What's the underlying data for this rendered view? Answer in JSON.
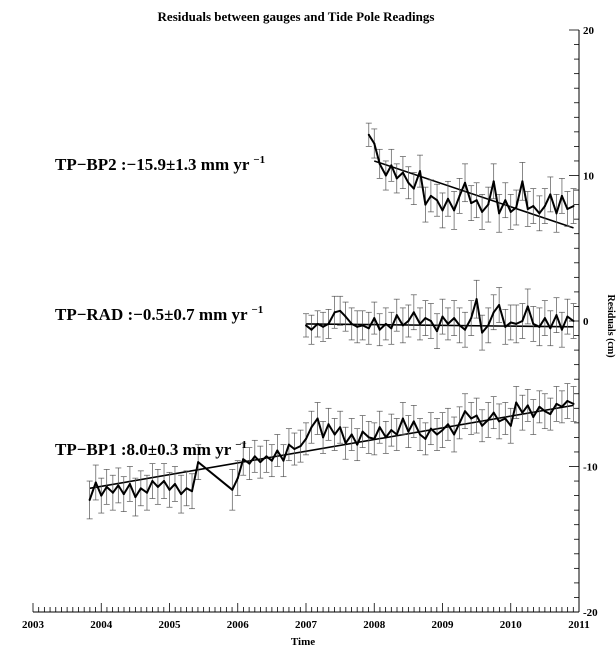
{
  "chart_data": {
    "type": "line",
    "title": "Residuals between gauges and Tide Pole Readings",
    "xlabel": "Time",
    "ylabel": "Residuals (cm)",
    "xlim": [
      2003,
      2011
    ],
    "ylim": [
      -20,
      20
    ],
    "x_ticks": [
      "2003",
      "2004",
      "2005",
      "2006",
      "2007",
      "2008",
      "2009",
      "2010",
      "2011"
    ],
    "y_ticks": [
      "20",
      "10",
      "0",
      "-10",
      "-20"
    ],
    "y_tick_values": [
      20,
      10,
      0,
      -10,
      -20
    ],
    "y_axis_side": "right",
    "error_bars": true,
    "series": [
      {
        "name": "TP-BP2",
        "annotation": {
          "prefix": "TP−BP2 :−15.9±1.3 mm yr",
          "sup": "−1"
        },
        "x": [
          2007.92,
          2008.0,
          2008.08,
          2008.17,
          2008.25,
          2008.33,
          2008.42,
          2008.5,
          2008.58,
          2008.67,
          2008.75,
          2008.83,
          2008.92,
          2009.0,
          2009.08,
          2009.17,
          2009.25,
          2009.33,
          2009.42,
          2009.5,
          2009.58,
          2009.67,
          2009.75,
          2009.83,
          2009.92,
          2010.0,
          2010.08,
          2010.17,
          2010.25,
          2010.33,
          2010.42,
          2010.5,
          2010.58,
          2010.67,
          2010.75,
          2010.83,
          2010.92
        ],
        "y": [
          12.8,
          12.2,
          10.8,
          10.0,
          10.7,
          9.8,
          10.2,
          9.5,
          9.1,
          10.3,
          8.0,
          8.6,
          8.3,
          7.6,
          8.4,
          7.6,
          8.6,
          9.5,
          8.1,
          8.3,
          7.5,
          8.0,
          9.6,
          7.4,
          8.3,
          7.5,
          7.8,
          9.6,
          7.7,
          7.9,
          7.4,
          7.9,
          8.7,
          7.4,
          8.6,
          7.7,
          7.9
        ],
        "err": [
          0.8,
          1.0,
          1.0,
          1.0,
          1.1,
          1.0,
          1.1,
          1.1,
          1.1,
          1.1,
          1.2,
          1.1,
          1.1,
          1.2,
          1.2,
          1.3,
          1.2,
          1.3,
          1.2,
          1.2,
          1.2,
          1.2,
          1.2,
          1.3,
          1.2,
          1.2,
          1.2,
          1.3,
          1.2,
          1.2,
          1.2,
          1.2,
          1.2,
          1.3,
          1.2,
          1.2,
          1.2
        ],
        "trend": {
          "x": [
            2008.0,
            2010.92
          ],
          "y": [
            11.0,
            6.4
          ]
        }
      },
      {
        "name": "TP-RAD",
        "annotation": {
          "prefix": "TP−RAD :−0.5±0.7 mm yr",
          "sup": "−1"
        },
        "x": [
          2007.0,
          2007.08,
          2007.17,
          2007.25,
          2007.33,
          2007.42,
          2007.5,
          2007.58,
          2007.67,
          2007.75,
          2007.83,
          2007.92,
          2008.0,
          2008.08,
          2008.17,
          2008.25,
          2008.33,
          2008.42,
          2008.5,
          2008.58,
          2008.67,
          2008.75,
          2008.83,
          2008.92,
          2009.0,
          2009.08,
          2009.17,
          2009.25,
          2009.33,
          2009.42,
          2009.5,
          2009.58,
          2009.67,
          2009.75,
          2009.83,
          2009.92,
          2010.0,
          2010.08,
          2010.17,
          2010.25,
          2010.33,
          2010.42,
          2010.5,
          2010.58,
          2010.67,
          2010.75,
          2010.83,
          2010.92
        ],
        "y": [
          -0.3,
          -0.6,
          -0.2,
          -0.4,
          -0.2,
          0.6,
          0.7,
          0.3,
          -0.2,
          -0.4,
          -0.3,
          -0.5,
          0.2,
          -0.6,
          -0.2,
          -0.5,
          0.4,
          -0.3,
          0.0,
          0.6,
          -0.2,
          0.2,
          0.0,
          -0.7,
          0.3,
          -0.2,
          0.2,
          -0.3,
          -0.6,
          0.2,
          1.5,
          -0.8,
          -0.3,
          0.6,
          1.1,
          -0.4,
          -0.1,
          -0.2,
          0.0,
          1.0,
          -0.2,
          -0.4,
          0.2,
          -0.5,
          0.4,
          -0.6,
          0.3,
          0.0
        ],
        "err": [
          0.8,
          1.0,
          0.9,
          1.0,
          1.0,
          1.1,
          1.0,
          1.0,
          1.1,
          1.1,
          1.0,
          1.1,
          1.1,
          1.1,
          1.1,
          1.1,
          1.1,
          1.2,
          1.1,
          1.2,
          1.1,
          1.2,
          1.2,
          1.2,
          1.2,
          1.1,
          1.2,
          1.2,
          1.2,
          1.2,
          1.3,
          1.2,
          1.2,
          1.2,
          1.2,
          1.2,
          1.2,
          1.3,
          1.2,
          1.2,
          1.2,
          1.3,
          1.2,
          1.2,
          1.2,
          1.2,
          1.2,
          1.2
        ],
        "trend": {
          "x": [
            2007.0,
            2010.92
          ],
          "y": [
            -0.2,
            -0.4
          ]
        }
      },
      {
        "name": "TP-BP1",
        "annotation": {
          "prefix": "TP−BP1 :8.0±0.3 mm yr",
          "sup": "−1"
        },
        "x": [
          2003.83,
          2003.92,
          2004.0,
          2004.08,
          2004.17,
          2004.25,
          2004.33,
          2004.42,
          2004.5,
          2004.58,
          2004.67,
          2004.75,
          2004.83,
          2004.92,
          2005.0,
          2005.08,
          2005.17,
          2005.25,
          2005.33,
          2005.42,
          2005.92,
          2006.0,
          2006.08,
          2006.17,
          2006.25,
          2006.33,
          2006.42,
          2006.5,
          2006.58,
          2006.67,
          2006.75,
          2006.83,
          2006.92,
          2007.0,
          2007.08,
          2007.17,
          2007.25,
          2007.33,
          2007.42,
          2007.5,
          2007.58,
          2007.67,
          2007.75,
          2007.83,
          2007.92,
          2008.0,
          2008.08,
          2008.17,
          2008.25,
          2008.33,
          2008.42,
          2008.5,
          2008.58,
          2008.67,
          2008.75,
          2008.83,
          2008.92,
          2009.0,
          2009.08,
          2009.17,
          2009.25,
          2009.33,
          2009.42,
          2009.5,
          2009.58,
          2009.67,
          2009.75,
          2009.83,
          2009.92,
          2010.0,
          2010.08,
          2010.17,
          2010.25,
          2010.33,
          2010.42,
          2010.5,
          2010.58,
          2010.67,
          2010.75,
          2010.83,
          2010.92
        ],
        "y": [
          -12.3,
          -11.1,
          -12.0,
          -11.4,
          -11.8,
          -11.3,
          -11.9,
          -11.2,
          -12.1,
          -11.5,
          -11.8,
          -11.0,
          -11.4,
          -11.0,
          -11.6,
          -11.2,
          -11.9,
          -11.5,
          -11.7,
          -9.7,
          -11.6,
          -10.8,
          -9.5,
          -9.8,
          -9.3,
          -9.7,
          -9.3,
          -9.6,
          -8.9,
          -9.6,
          -8.5,
          -8.8,
          -8.6,
          -8.1,
          -7.3,
          -6.7,
          -8.0,
          -7.1,
          -7.8,
          -7.3,
          -8.4,
          -7.8,
          -8.5,
          -7.6,
          -8.0,
          -8.1,
          -7.3,
          -8.0,
          -7.5,
          -7.8,
          -6.7,
          -7.6,
          -6.9,
          -7.8,
          -8.1,
          -7.4,
          -7.8,
          -7.5,
          -7.1,
          -7.8,
          -7.0,
          -6.2,
          -6.7,
          -6.5,
          -7.2,
          -6.8,
          -6.3,
          -6.9,
          -6.7,
          -7.2,
          -5.6,
          -6.3,
          -5.8,
          -6.6,
          -5.9,
          -6.2,
          -6.4,
          -5.7,
          -5.9,
          -5.5,
          -5.7
        ],
        "err": [
          1.3,
          1.2,
          1.2,
          1.2,
          1.2,
          1.2,
          1.2,
          1.2,
          1.3,
          1.2,
          1.2,
          1.2,
          1.2,
          1.2,
          1.2,
          1.2,
          1.3,
          1.2,
          1.2,
          1.2,
          1.4,
          1.2,
          1.1,
          1.1,
          1.1,
          1.1,
          1.1,
          1.1,
          1.1,
          1.1,
          1.1,
          1.1,
          1.1,
          1.1,
          1.1,
          1.1,
          1.1,
          1.1,
          1.1,
          1.1,
          1.1,
          1.1,
          1.1,
          1.1,
          1.1,
          1.1,
          1.1,
          1.1,
          1.1,
          1.1,
          1.1,
          1.1,
          1.1,
          1.1,
          1.1,
          1.1,
          1.1,
          1.2,
          1.1,
          1.2,
          1.1,
          1.2,
          1.1,
          1.2,
          1.1,
          1.2,
          1.1,
          1.2,
          1.1,
          1.2,
          1.1,
          1.2,
          1.1,
          1.2,
          1.1,
          1.2,
          1.1,
          1.2,
          1.1,
          1.2,
          1.2
        ],
        "trend": {
          "x": [
            2003.83,
            2010.92
          ],
          "y": [
            -11.5,
            -5.8
          ]
        }
      }
    ]
  }
}
